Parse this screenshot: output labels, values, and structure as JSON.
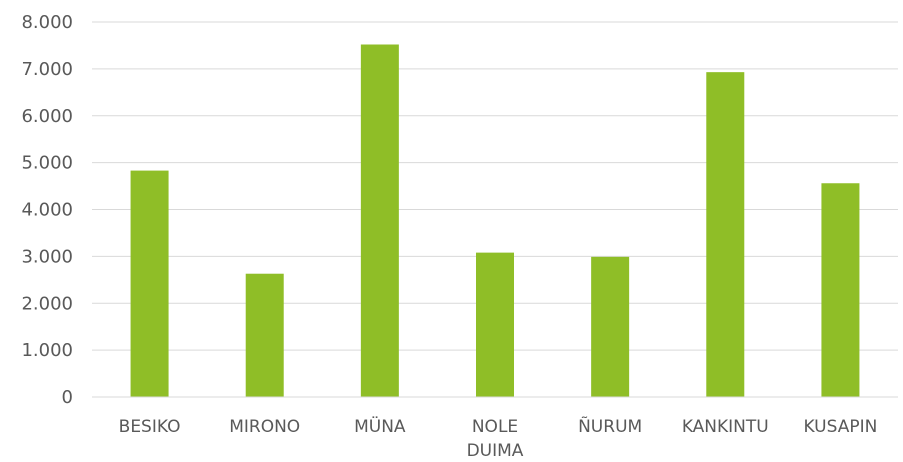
{
  "chart_data": {
    "type": "bar",
    "categories": [
      [
        "BESIKO"
      ],
      [
        "MIRONO"
      ],
      [
        "MÜNA"
      ],
      [
        "NOLE",
        "DUIMA"
      ],
      [
        "ÑURUM"
      ],
      [
        "KANKINTU"
      ],
      [
        "KUSAPIN"
      ]
    ],
    "values": [
      4830,
      2630,
      7520,
      3080,
      2990,
      6930,
      4560
    ],
    "y_ticks": [
      "0",
      "1.000",
      "2.000",
      "3.000",
      "4.000",
      "5.000",
      "6.000",
      "7.000",
      "8.000"
    ],
    "ylim": [
      0,
      8000
    ],
    "grid": true,
    "bar_color": "#8fbe27",
    "title": "",
    "xlabel": "",
    "ylabel": ""
  }
}
